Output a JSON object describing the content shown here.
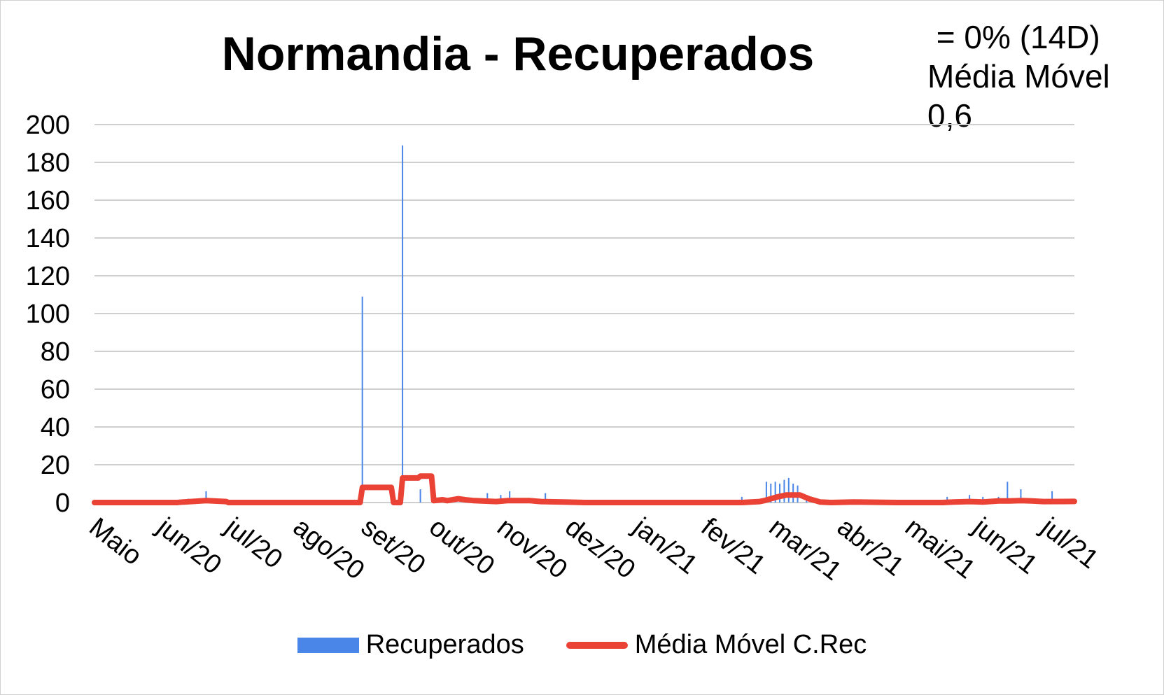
{
  "chart_data": {
    "type": "bar",
    "title": "Normandia - Recuperados",
    "annotation": [
      " = 0% (14D)",
      "Média Móvel",
      "0,6"
    ],
    "ylim": [
      0,
      200
    ],
    "yticks": [
      "200",
      "180",
      "160",
      "140",
      "120",
      "100",
      "80",
      "60",
      "40",
      "20",
      "0"
    ],
    "grid": true,
    "legend_position": "bottom",
    "xticks": [
      "Maio",
      "jun/20",
      "jul/20",
      "ago/20",
      "set/20",
      "out/20",
      "nov/20",
      "dez/20",
      "jan/21",
      "fev/21",
      "mar/21",
      "abr/21",
      "mai/21",
      "jun/21",
      "jul/21"
    ],
    "days_total": 440,
    "series": [
      {
        "name": "Recuperados",
        "kind": "bar",
        "color": "#4a86e8",
        "points": [
          [
            42,
            2
          ],
          [
            50,
            6
          ],
          [
            120,
            109
          ],
          [
            138,
            189
          ],
          [
            146,
            7
          ],
          [
            152,
            10
          ],
          [
            176,
            5
          ],
          [
            182,
            4
          ],
          [
            186,
            6
          ],
          [
            202,
            5
          ],
          [
            290,
            3
          ],
          [
            301,
            11
          ],
          [
            303,
            10
          ],
          [
            305,
            11
          ],
          [
            307,
            10
          ],
          [
            309,
            12
          ],
          [
            311,
            13
          ],
          [
            313,
            10
          ],
          [
            315,
            9
          ],
          [
            319,
            4
          ],
          [
            382,
            3
          ],
          [
            392,
            4
          ],
          [
            398,
            3
          ],
          [
            405,
            3
          ],
          [
            409,
            11
          ],
          [
            415,
            7
          ],
          [
            429,
            6
          ]
        ]
      },
      {
        "name": "Média Móvel C.Rec",
        "kind": "line",
        "color": "#ea4335",
        "points": [
          [
            0,
            0
          ],
          [
            37,
            0
          ],
          [
            40,
            0.3
          ],
          [
            50,
            1
          ],
          [
            59,
            0.5
          ],
          [
            60,
            0
          ],
          [
            119,
            0
          ],
          [
            120,
            8
          ],
          [
            133,
            8
          ],
          [
            134,
            0
          ],
          [
            137,
            0
          ],
          [
            138,
            13
          ],
          [
            145,
            13
          ],
          [
            146,
            14
          ],
          [
            151,
            14
          ],
          [
            152,
            1
          ],
          [
            156,
            1.5
          ],
          [
            158,
            1
          ],
          [
            163,
            2
          ],
          [
            166,
            1.5
          ],
          [
            170,
            1
          ],
          [
            180,
            0.5
          ],
          [
            185,
            1
          ],
          [
            195,
            1
          ],
          [
            200,
            0.5
          ],
          [
            210,
            0.3
          ],
          [
            220,
            0
          ],
          [
            240,
            0
          ],
          [
            270,
            0
          ],
          [
            290,
            0
          ],
          [
            298,
            0.5
          ],
          [
            300,
            1
          ],
          [
            303,
            2
          ],
          [
            306,
            3
          ],
          [
            310,
            4
          ],
          [
            316,
            4
          ],
          [
            320,
            2
          ],
          [
            323,
            1
          ],
          [
            325,
            0.3
          ],
          [
            330,
            0
          ],
          [
            340,
            0.3
          ],
          [
            360,
            0
          ],
          [
            380,
            0
          ],
          [
            385,
            0.3
          ],
          [
            392,
            0.5
          ],
          [
            398,
            0.3
          ],
          [
            405,
            0.8
          ],
          [
            410,
            0.8
          ],
          [
            415,
            1
          ],
          [
            420,
            0.8
          ],
          [
            425,
            0.5
          ],
          [
            439,
            0.6
          ]
        ]
      }
    ]
  }
}
